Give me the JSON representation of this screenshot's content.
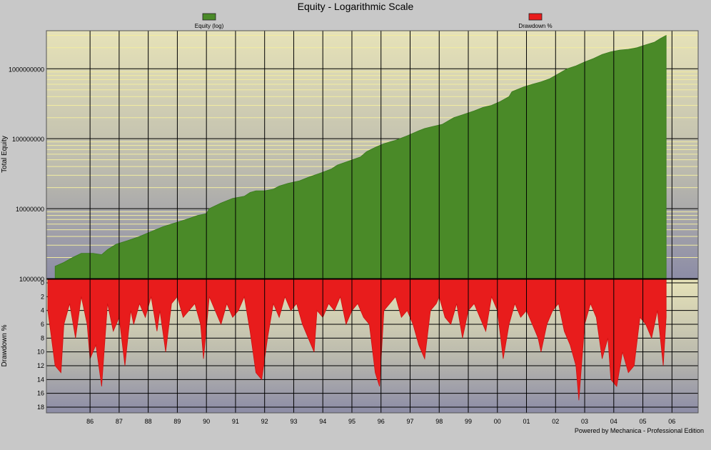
{
  "chart_data": [
    {
      "type": "area",
      "title": "Equity - Logarithmic Scale",
      "ylabel": "Total Equity",
      "yscale": "log",
      "ylim": [
        1000000,
        3500000000
      ],
      "yticks": [
        1000000,
        10000000,
        100000000,
        1000000000
      ],
      "ytick_labels": [
        "1000000",
        "10000000",
        "100000000",
        "1000000000"
      ],
      "grid": true,
      "legend": {
        "position": "top-left",
        "label": "Equity (log)",
        "color": "#4a8a28"
      },
      "series": [
        {
          "name": "Equity (log)",
          "color": "#4a8a28",
          "x": [
            1985.3,
            1985.6,
            1985.9,
            1986.2,
            1986.6,
            1986.9,
            1987.1,
            1987.4,
            1987.8,
            1988.2,
            1988.6,
            1989.0,
            1989.4,
            1989.8,
            1990.2,
            1990.5,
            1990.6,
            1991.0,
            1991.4,
            1991.8,
            1992.0,
            1992.2,
            1992.5,
            1992.8,
            1993.0,
            1993.3,
            1993.7,
            1994.0,
            1994.4,
            1994.8,
            1995.0,
            1995.4,
            1995.8,
            1996.0,
            1996.3,
            1996.6,
            1997.0,
            1997.4,
            1997.8,
            1998.0,
            1998.3,
            1998.6,
            1999.0,
            1999.3,
            1999.7,
            2000.0,
            2000.3,
            2000.6,
            2000.9,
            2001.0,
            2001.4,
            2001.7,
            2002.0,
            2002.3,
            2002.6,
            2002.9,
            2003.2,
            2003.5,
            2003.8,
            2004.1,
            2004.4,
            2004.7,
            2005.0,
            2005.3,
            2005.6,
            2005.9,
            2006.1,
            2006.3
          ],
          "y": [
            1500000,
            1700000,
            2000000,
            2300000,
            2300000,
            2200000,
            2600000,
            3100000,
            3500000,
            4000000,
            4700000,
            5500000,
            6200000,
            7000000,
            8000000,
            8500000,
            10000000,
            12000000,
            14000000,
            15000000,
            17000000,
            18000000,
            18000000,
            19000000,
            21000000,
            23000000,
            25000000,
            28000000,
            32000000,
            37000000,
            42000000,
            48000000,
            55000000,
            65000000,
            75000000,
            85000000,
            95000000,
            110000000,
            130000000,
            140000000,
            150000000,
            160000000,
            200000000,
            220000000,
            250000000,
            280000000,
            300000000,
            340000000,
            400000000,
            470000000,
            550000000,
            600000000,
            650000000,
            720000000,
            850000000,
            1000000000,
            1100000000,
            1250000000,
            1400000000,
            1600000000,
            1750000000,
            1850000000,
            1900000000,
            2000000000,
            2200000000,
            2400000000,
            2700000000,
            3000000000
          ]
        }
      ]
    },
    {
      "type": "area",
      "ylabel": "Drawdown %",
      "ylim": [
        0,
        18
      ],
      "yaxis_inverted": true,
      "yticks": [
        0,
        2,
        4,
        6,
        8,
        10,
        12,
        14,
        16,
        18
      ],
      "legend": {
        "position": "top-right",
        "label": "Drawdown %",
        "color": "#e81c1c"
      },
      "x_ticks": [
        "86",
        "87",
        "88",
        "89",
        "90",
        "91",
        "92",
        "93",
        "94",
        "95",
        "96",
        "97",
        "98",
        "99",
        "00",
        "01",
        "02",
        "03",
        "04",
        "05",
        "06"
      ],
      "series": [
        {
          "name": "Drawdown %",
          "color": "#e81c1c",
          "x": [
            1985.05,
            1985.3,
            1985.5,
            1985.6,
            1985.8,
            1986.0,
            1986.2,
            1986.4,
            1986.5,
            1986.7,
            1986.8,
            1986.9,
            1987.1,
            1987.3,
            1987.5,
            1987.7,
            1987.9,
            1988.0,
            1988.2,
            1988.4,
            1988.6,
            1988.8,
            1988.9,
            1989.1,
            1989.3,
            1989.5,
            1989.7,
            1989.9,
            1990.1,
            1990.3,
            1990.4,
            1990.6,
            1990.8,
            1991.0,
            1991.2,
            1991.4,
            1991.6,
            1991.8,
            1992.0,
            1992.1,
            1992.2,
            1992.4,
            1992.6,
            1992.8,
            1993.0,
            1993.2,
            1993.4,
            1993.6,
            1993.8,
            1994.0,
            1994.2,
            1994.3,
            1994.5,
            1994.7,
            1994.9,
            1995.1,
            1995.3,
            1995.5,
            1995.7,
            1995.9,
            1996.1,
            1996.3,
            1996.45,
            1996.6,
            1996.8,
            1997.0,
            1997.2,
            1997.4,
            1997.6,
            1997.8,
            1998.0,
            1998.2,
            1998.4,
            1998.5,
            1998.7,
            1998.9,
            1999.1,
            1999.3,
            1999.5,
            1999.7,
            1999.9,
            2000.1,
            2000.3,
            2000.5,
            2000.7,
            2000.9,
            2001.1,
            2001.3,
            2001.5,
            2001.7,
            2001.9,
            2002.0,
            2002.2,
            2002.4,
            2002.6,
            2002.8,
            2003.0,
            2003.2,
            2003.3,
            2003.5,
            2003.7,
            2003.9,
            2004.1,
            2004.3,
            2004.4,
            2004.6,
            2004.8,
            2005.0,
            2005.2,
            2005.4,
            2005.6,
            2005.8,
            2006.0,
            2006.2,
            2006.3
          ],
          "y": [
            4,
            12,
            13,
            6,
            3,
            8,
            2,
            6,
            11,
            9,
            12,
            15,
            3,
            7,
            5,
            12,
            4,
            6,
            3,
            5,
            2,
            7,
            4,
            10,
            3,
            2,
            5,
            4,
            3,
            6,
            11,
            2,
            4,
            6,
            3,
            5,
            4,
            2,
            7,
            10,
            13,
            14,
            8,
            3,
            5,
            2,
            4,
            3,
            6,
            8,
            10,
            4,
            5,
            3,
            4,
            2,
            6,
            4,
            3,
            5,
            6,
            13,
            15,
            4,
            3,
            2,
            5,
            4,
            6,
            9,
            11,
            4,
            3,
            2,
            5,
            6,
            3,
            8,
            4,
            3,
            5,
            7,
            2,
            4,
            11,
            6,
            3,
            5,
            4,
            6,
            8,
            10,
            6,
            4,
            3,
            7,
            9,
            12,
            17,
            6,
            3,
            5,
            11,
            8,
            14,
            15,
            10,
            13,
            12,
            5,
            6,
            8,
            4,
            12,
            5
          ]
        }
      ]
    }
  ],
  "footer": {
    "credit": "Powered by Mechanica - Professional Edition"
  }
}
